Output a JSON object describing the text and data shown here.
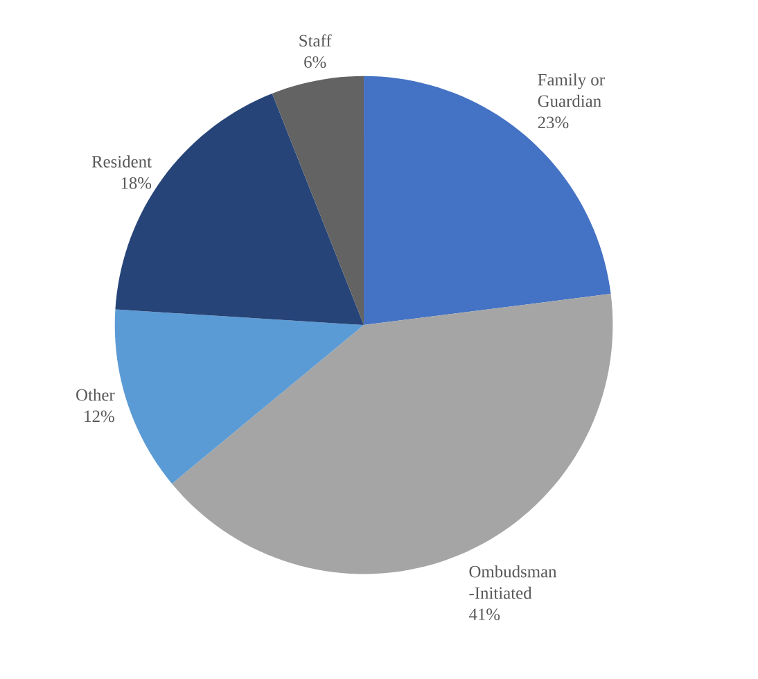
{
  "chart_data": {
    "type": "pie",
    "categories": [
      "Family or Guardian",
      "Ombudsman -Initiated",
      "Other",
      "Resident",
      "Staff"
    ],
    "values": [
      23,
      41,
      12,
      18,
      6
    ],
    "value_labels": [
      "23%",
      "41%",
      "12%",
      "18%",
      "6%"
    ],
    "colors": [
      "#4472c4",
      "#a5a5a5",
      "#5b9bd5",
      "#264478",
      "#636363"
    ]
  }
}
